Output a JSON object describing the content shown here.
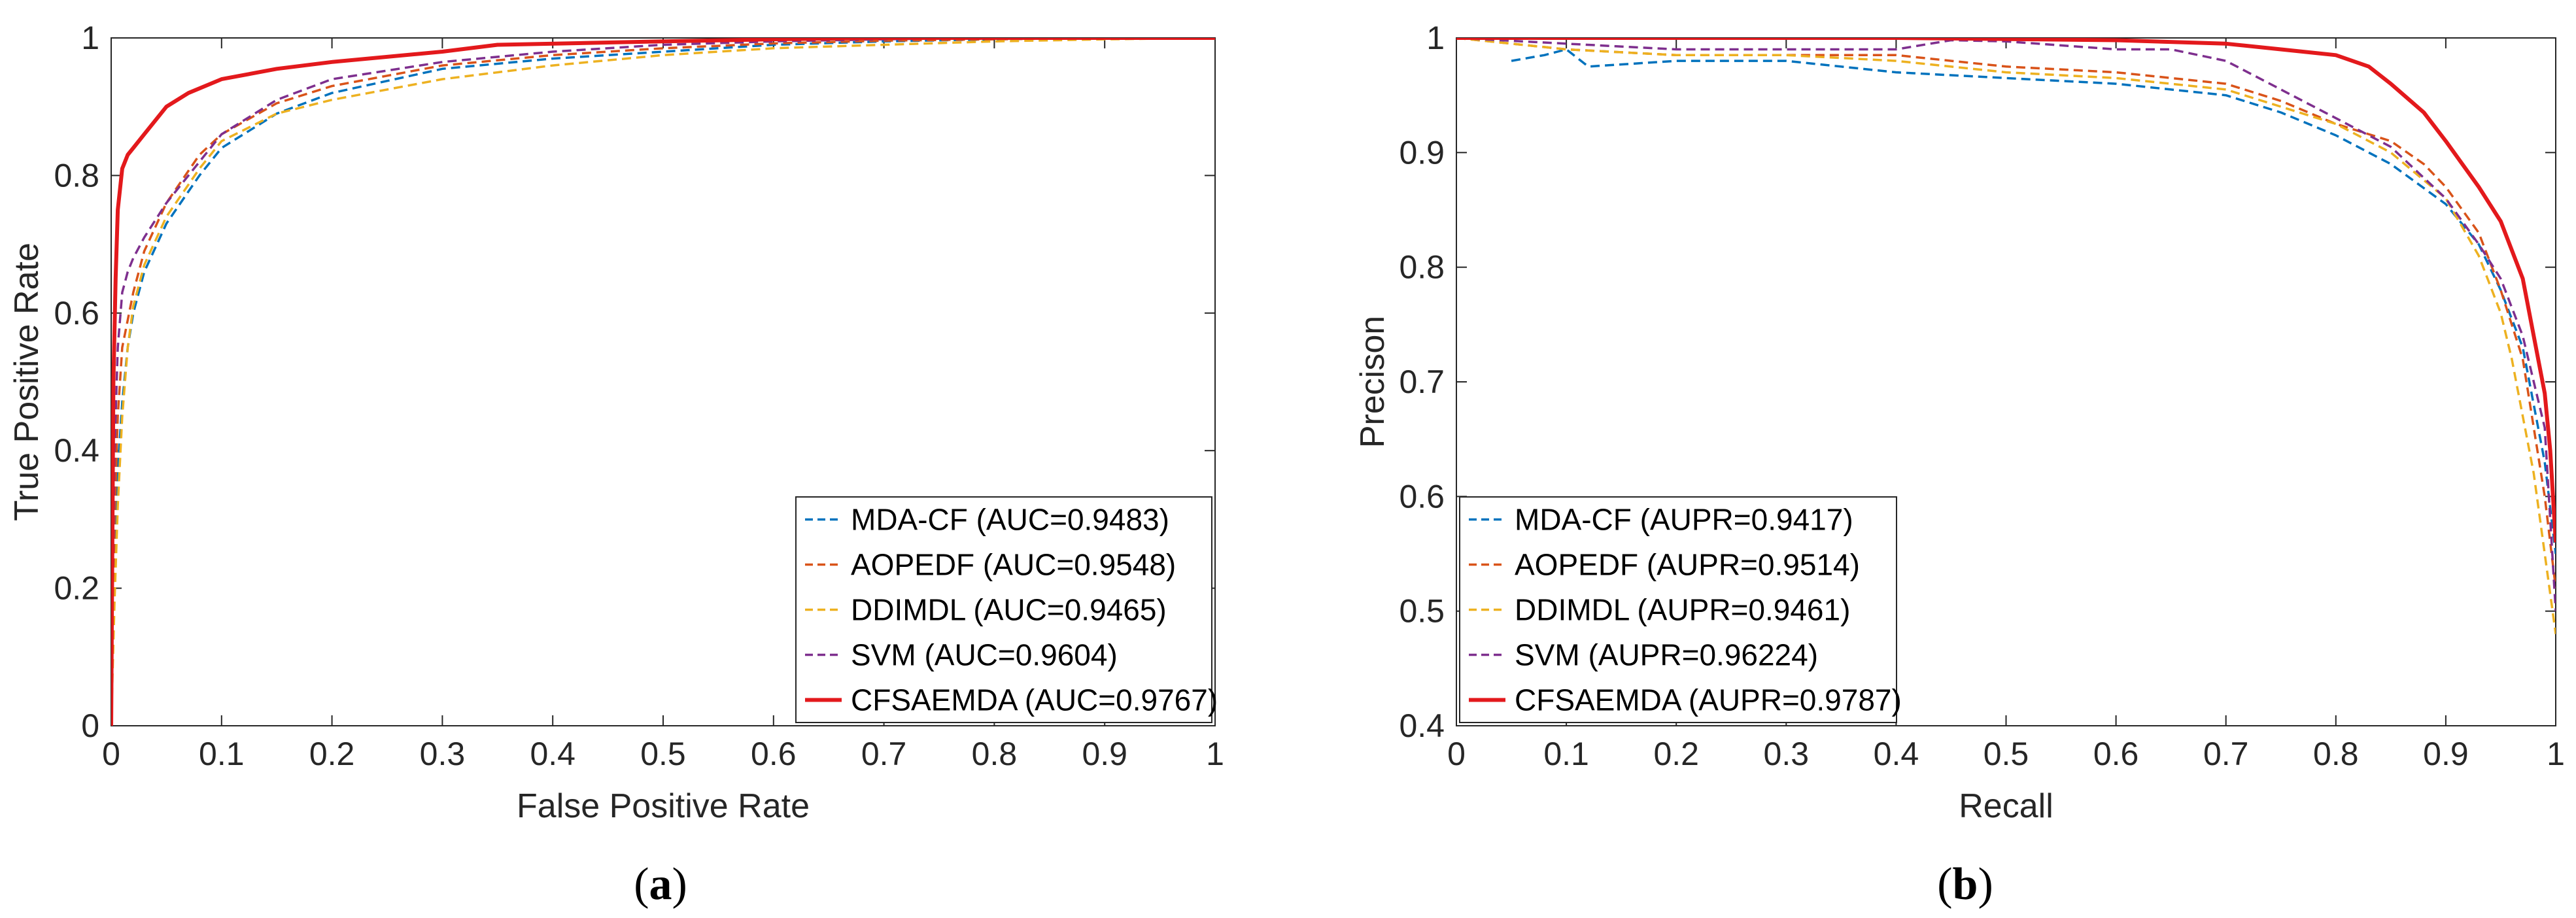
{
  "chart_data": [
    {
      "type": "line",
      "caption_letter": "a",
      "xlabel": "False Positive Rate",
      "ylabel": "True Positive Rate",
      "xlim": [
        0,
        1
      ],
      "ylim": [
        0,
        1
      ],
      "xticks": [
        "0",
        "0.1",
        "0.2",
        "0.3",
        "0.4",
        "0.5",
        "0.6",
        "0.7",
        "0.8",
        "0.9",
        "1"
      ],
      "yticks": [
        "0",
        "0.2",
        "0.4",
        "0.6",
        "0.8",
        "1"
      ],
      "legend_position": "bottom-right",
      "grid": false,
      "series": [
        {
          "name": "MDA-CF (AUC=0.9483)",
          "color": "#0072BD",
          "style": "dashed",
          "points": [
            [
              0,
              0
            ],
            [
              0.003,
              0.25
            ],
            [
              0.006,
              0.37
            ],
            [
              0.01,
              0.47
            ],
            [
              0.015,
              0.55
            ],
            [
              0.02,
              0.6
            ],
            [
              0.03,
              0.66
            ],
            [
              0.05,
              0.73
            ],
            [
              0.08,
              0.8
            ],
            [
              0.1,
              0.84
            ],
            [
              0.15,
              0.89
            ],
            [
              0.2,
              0.92
            ],
            [
              0.3,
              0.955
            ],
            [
              0.4,
              0.97
            ],
            [
              0.5,
              0.98
            ],
            [
              0.6,
              0.99
            ],
            [
              0.7,
              0.995
            ],
            [
              0.8,
              0.998
            ],
            [
              0.9,
              1
            ],
            [
              1,
              1
            ]
          ]
        },
        {
          "name": "AOPEDF (AUC=0.9548)",
          "color": "#D95319",
          "style": "dashed",
          "points": [
            [
              0,
              0
            ],
            [
              0.003,
              0.3
            ],
            [
              0.006,
              0.45
            ],
            [
              0.01,
              0.55
            ],
            [
              0.02,
              0.63
            ],
            [
              0.03,
              0.69
            ],
            [
              0.05,
              0.76
            ],
            [
              0.08,
              0.83
            ],
            [
              0.1,
              0.86
            ],
            [
              0.15,
              0.905
            ],
            [
              0.2,
              0.93
            ],
            [
              0.3,
              0.96
            ],
            [
              0.4,
              0.975
            ],
            [
              0.5,
              0.985
            ],
            [
              0.6,
              0.992
            ],
            [
              0.7,
              0.996
            ],
            [
              0.8,
              0.998
            ],
            [
              0.9,
              1
            ],
            [
              1,
              1
            ]
          ]
        },
        {
          "name": "DDIMDL (AUC=0.9465)",
          "color": "#EDB120",
          "style": "dashed",
          "points": [
            [
              0,
              0
            ],
            [
              0.003,
              0.18
            ],
            [
              0.006,
              0.32
            ],
            [
              0.01,
              0.45
            ],
            [
              0.015,
              0.55
            ],
            [
              0.02,
              0.61
            ],
            [
              0.03,
              0.67
            ],
            [
              0.05,
              0.74
            ],
            [
              0.08,
              0.81
            ],
            [
              0.1,
              0.85
            ],
            [
              0.15,
              0.89
            ],
            [
              0.2,
              0.91
            ],
            [
              0.3,
              0.94
            ],
            [
              0.4,
              0.96
            ],
            [
              0.5,
              0.975
            ],
            [
              0.6,
              0.985
            ],
            [
              0.7,
              0.99
            ],
            [
              0.8,
              0.995
            ],
            [
              0.9,
              0.998
            ],
            [
              1,
              1
            ]
          ]
        },
        {
          "name": "SVM (AUC=0.9604)",
          "color": "#7E2F8E",
          "style": "dashed",
          "points": [
            [
              0,
              0
            ],
            [
              0.003,
              0.4
            ],
            [
              0.006,
              0.55
            ],
            [
              0.01,
              0.63
            ],
            [
              0.015,
              0.66
            ],
            [
              0.02,
              0.68
            ],
            [
              0.03,
              0.71
            ],
            [
              0.05,
              0.76
            ],
            [
              0.08,
              0.82
            ],
            [
              0.1,
              0.86
            ],
            [
              0.15,
              0.91
            ],
            [
              0.2,
              0.94
            ],
            [
              0.3,
              0.965
            ],
            [
              0.4,
              0.98
            ],
            [
              0.5,
              0.99
            ],
            [
              0.6,
              0.995
            ],
            [
              0.7,
              0.998
            ],
            [
              0.8,
              1
            ],
            [
              1,
              1
            ]
          ]
        },
        {
          "name": "CFSAEMDA (AUC=0.9767)",
          "color": "#E3191C",
          "style": "solid",
          "points": [
            [
              0,
              0
            ],
            [
              0.002,
              0.5
            ],
            [
              0.004,
              0.65
            ],
            [
              0.006,
              0.75
            ],
            [
              0.01,
              0.81
            ],
            [
              0.015,
              0.83
            ],
            [
              0.02,
              0.84
            ],
            [
              0.03,
              0.86
            ],
            [
              0.04,
              0.88
            ],
            [
              0.05,
              0.9
            ],
            [
              0.07,
              0.92
            ],
            [
              0.1,
              0.94
            ],
            [
              0.15,
              0.955
            ],
            [
              0.2,
              0.965
            ],
            [
              0.3,
              0.98
            ],
            [
              0.35,
              0.99
            ],
            [
              0.5,
              0.995
            ],
            [
              0.6,
              0.998
            ],
            [
              0.7,
              1
            ],
            [
              1,
              1
            ]
          ]
        }
      ]
    },
    {
      "type": "line",
      "caption_letter": "b",
      "xlabel": "Recall",
      "ylabel": "Precison",
      "xlim": [
        0,
        1
      ],
      "ylim": [
        0.4,
        1
      ],
      "xticks": [
        "0",
        "0.1",
        "0.2",
        "0.3",
        "0.4",
        "0.5",
        "0.6",
        "0.7",
        "0.8",
        "0.9",
        "1"
      ],
      "yticks": [
        "0.4",
        "0.5",
        "0.6",
        "0.7",
        "0.8",
        "0.9",
        "1"
      ],
      "legend_position": "bottom-left",
      "grid": false,
      "series": [
        {
          "name": "MDA-CF (AUPR=0.9417)",
          "color": "#0072BD",
          "style": "dashed",
          "points": [
            [
              0.05,
              0.98
            ],
            [
              0.08,
              0.985
            ],
            [
              0.1,
              0.99
            ],
            [
              0.12,
              0.975
            ],
            [
              0.2,
              0.98
            ],
            [
              0.3,
              0.98
            ],
            [
              0.4,
              0.97
            ],
            [
              0.5,
              0.965
            ],
            [
              0.6,
              0.96
            ],
            [
              0.7,
              0.95
            ],
            [
              0.75,
              0.935
            ],
            [
              0.8,
              0.915
            ],
            [
              0.85,
              0.89
            ],
            [
              0.9,
              0.855
            ],
            [
              0.93,
              0.82
            ],
            [
              0.95,
              0.78
            ],
            [
              0.97,
              0.73
            ],
            [
              0.98,
              0.68
            ],
            [
              0.99,
              0.63
            ],
            [
              1,
              0.55
            ]
          ]
        },
        {
          "name": "AOPEDF (AUPR=0.9514)",
          "color": "#D95319",
          "style": "dashed",
          "points": [
            [
              0,
              1
            ],
            [
              0.1,
              0.99
            ],
            [
              0.2,
              0.985
            ],
            [
              0.3,
              0.985
            ],
            [
              0.4,
              0.985
            ],
            [
              0.5,
              0.975
            ],
            [
              0.6,
              0.97
            ],
            [
              0.7,
              0.96
            ],
            [
              0.75,
              0.945
            ],
            [
              0.8,
              0.925
            ],
            [
              0.85,
              0.91
            ],
            [
              0.88,
              0.89
            ],
            [
              0.9,
              0.87
            ],
            [
              0.93,
              0.83
            ],
            [
              0.95,
              0.78
            ],
            [
              0.97,
              0.72
            ],
            [
              0.98,
              0.66
            ],
            [
              0.99,
              0.6
            ],
            [
              1,
              0.52
            ]
          ]
        },
        {
          "name": "DDIMDL (AUPR=0.9461)",
          "color": "#EDB120",
          "style": "dashed",
          "points": [
            [
              0,
              1
            ],
            [
              0.1,
              0.99
            ],
            [
              0.2,
              0.985
            ],
            [
              0.3,
              0.985
            ],
            [
              0.4,
              0.98
            ],
            [
              0.5,
              0.97
            ],
            [
              0.6,
              0.965
            ],
            [
              0.7,
              0.955
            ],
            [
              0.75,
              0.94
            ],
            [
              0.8,
              0.925
            ],
            [
              0.85,
              0.9
            ],
            [
              0.9,
              0.86
            ],
            [
              0.93,
              0.81
            ],
            [
              0.95,
              0.76
            ],
            [
              0.96,
              0.72
            ],
            [
              0.97,
              0.67
            ],
            [
              0.98,
              0.62
            ],
            [
              0.99,
              0.55
            ],
            [
              1,
              0.48
            ]
          ]
        },
        {
          "name": "SVM (AUPR=0.96224)",
          "color": "#7E2F8E",
          "style": "dashed",
          "points": [
            [
              0,
              1
            ],
            [
              0.1,
              0.995
            ],
            [
              0.2,
              0.99
            ],
            [
              0.3,
              0.99
            ],
            [
              0.4,
              0.99
            ],
            [
              0.45,
              0.998
            ],
            [
              0.5,
              0.997
            ],
            [
              0.6,
              0.99
            ],
            [
              0.65,
              0.99
            ],
            [
              0.7,
              0.98
            ],
            [
              0.75,
              0.955
            ],
            [
              0.8,
              0.93
            ],
            [
              0.85,
              0.905
            ],
            [
              0.9,
              0.86
            ],
            [
              0.93,
              0.82
            ],
            [
              0.95,
              0.79
            ],
            [
              0.97,
              0.74
            ],
            [
              0.99,
              0.66
            ],
            [
              1,
              0.5
            ]
          ]
        },
        {
          "name": "CFSAEMDA (AUPR=0.9787)",
          "color": "#E3191C",
          "style": "solid",
          "points": [
            [
              0,
              1
            ],
            [
              0.4,
              1
            ],
            [
              0.6,
              0.998
            ],
            [
              0.7,
              0.995
            ],
            [
              0.75,
              0.99
            ],
            [
              0.8,
              0.985
            ],
            [
              0.83,
              0.975
            ],
            [
              0.85,
              0.96
            ],
            [
              0.88,
              0.935
            ],
            [
              0.9,
              0.91
            ],
            [
              0.93,
              0.87
            ],
            [
              0.95,
              0.84
            ],
            [
              0.97,
              0.79
            ],
            [
              0.98,
              0.74
            ],
            [
              0.99,
              0.69
            ],
            [
              0.995,
              0.64
            ],
            [
              1,
              0.56
            ]
          ]
        }
      ]
    }
  ]
}
